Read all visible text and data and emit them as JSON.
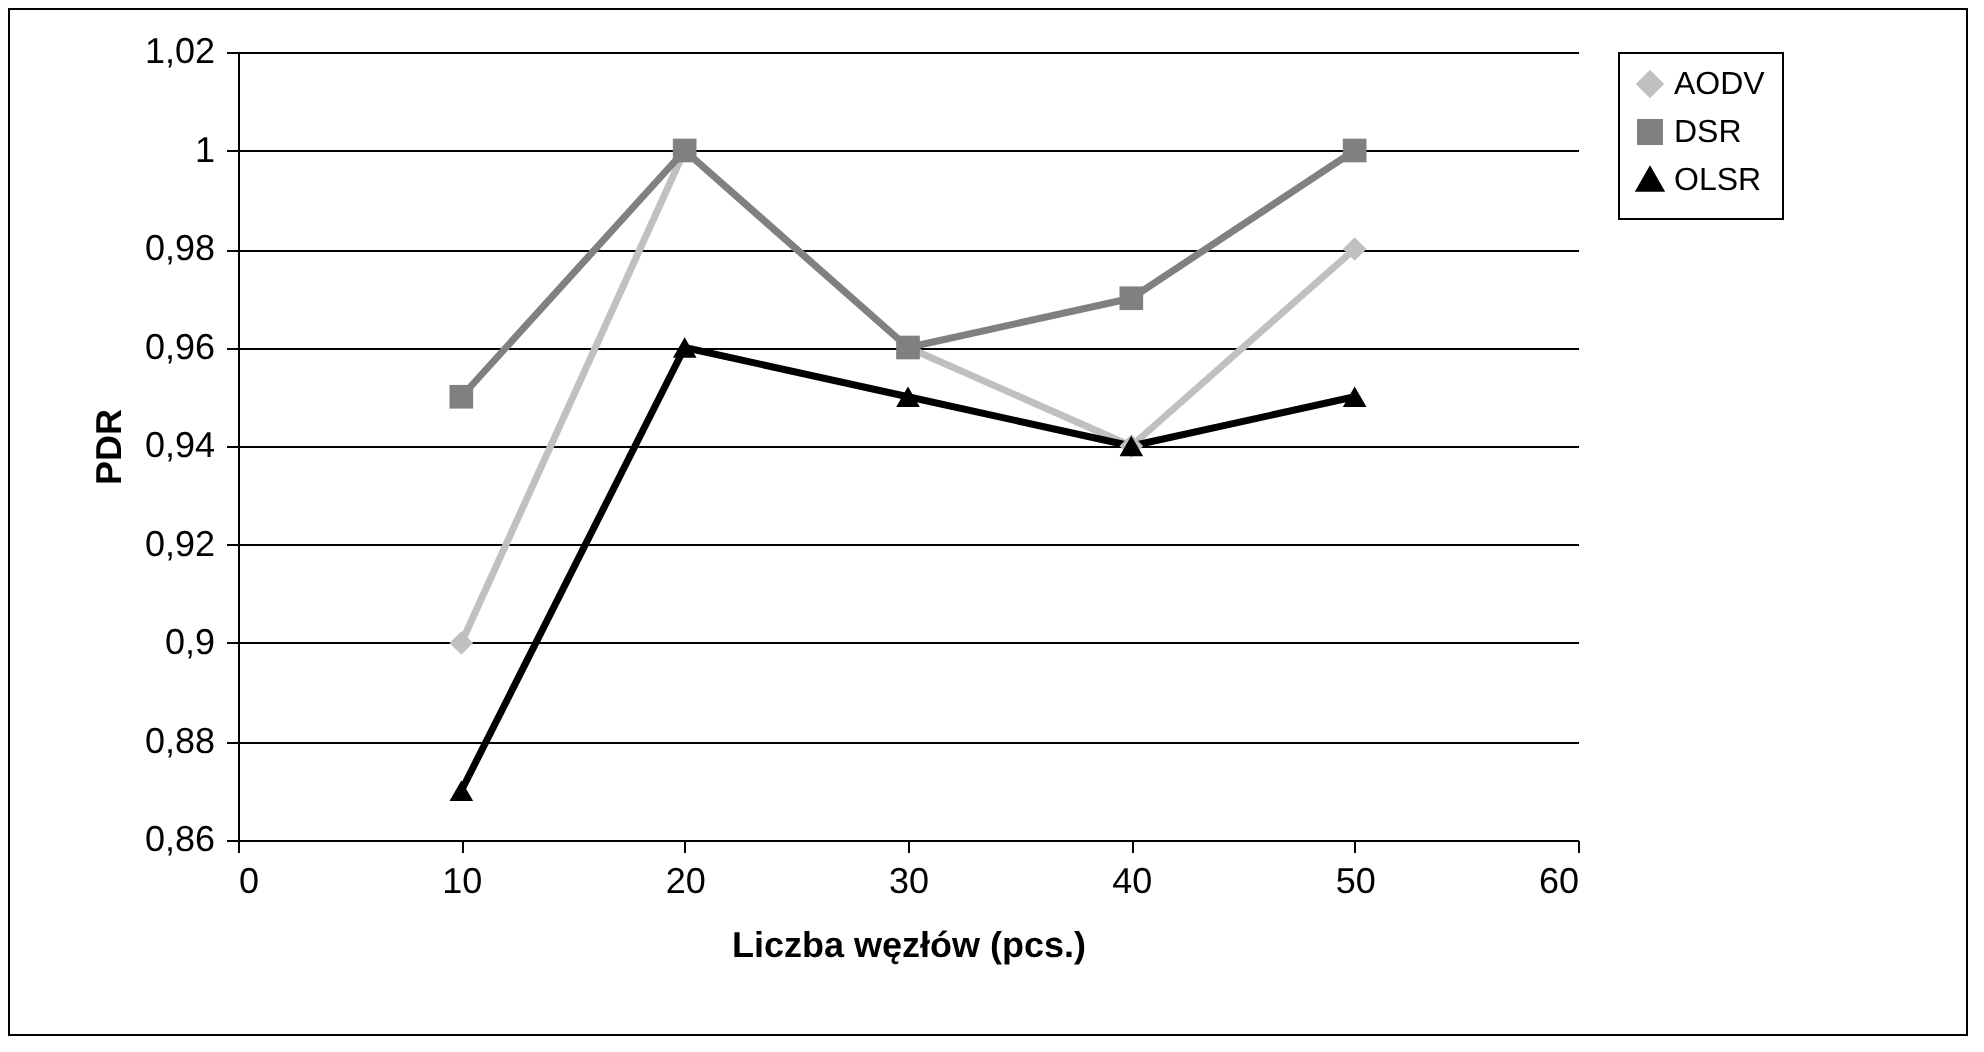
{
  "chart_data": {
    "type": "line",
    "xlabel": "Liczba węzłów (pcs.)",
    "ylabel": "PDR",
    "x": [
      10,
      20,
      30,
      40,
      50
    ],
    "series": [
      {
        "name": "AODV",
        "color": "#c0c0c0",
        "marker": "diamond",
        "values": [
          0.9,
          1.0,
          0.96,
          0.94,
          0.98
        ]
      },
      {
        "name": "DSR",
        "color": "#808080",
        "marker": "square",
        "values": [
          0.95,
          1.0,
          0.96,
          0.97,
          1.0
        ]
      },
      {
        "name": "OLSR",
        "color": "#000000",
        "marker": "triangle",
        "values": [
          0.87,
          0.96,
          0.95,
          0.94,
          0.95
        ]
      }
    ],
    "xlim": [
      0,
      60
    ],
    "xticks": [
      0,
      10,
      20,
      30,
      40,
      50,
      60
    ],
    "ylim": [
      0.86,
      1.02
    ],
    "yticks": [
      {
        "value": 0.86,
        "label": "0,86"
      },
      {
        "value": 0.88,
        "label": "0,88"
      },
      {
        "value": 0.9,
        "label": "0,9"
      },
      {
        "value": 0.92,
        "label": "0,92"
      },
      {
        "value": 0.94,
        "label": "0,94"
      },
      {
        "value": 0.96,
        "label": "0,96"
      },
      {
        "value": 0.98,
        "label": "0,98"
      },
      1,
      {
        "value": 1.02,
        "label": "1,02"
      }
    ],
    "grid": "y",
    "legend": "right",
    "line_style": "solid"
  }
}
